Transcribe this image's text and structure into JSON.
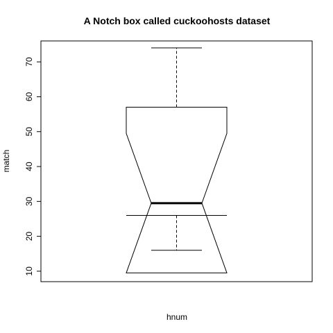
{
  "chart_data": {
    "type": "boxplot",
    "title": "A Notch box called cuckoohosts dataset",
    "xlabel": "hnum",
    "ylabel": "match",
    "ylim": [
      7,
      76
    ],
    "yticks": [
      10,
      20,
      30,
      40,
      50,
      60,
      70
    ],
    "notch": true,
    "box": {
      "whisker_low": 16,
      "q1": 26,
      "median": 29.5,
      "q3": 57,
      "whisker_high": 74,
      "notch_low": 9.5,
      "notch_high": 49.5
    }
  }
}
